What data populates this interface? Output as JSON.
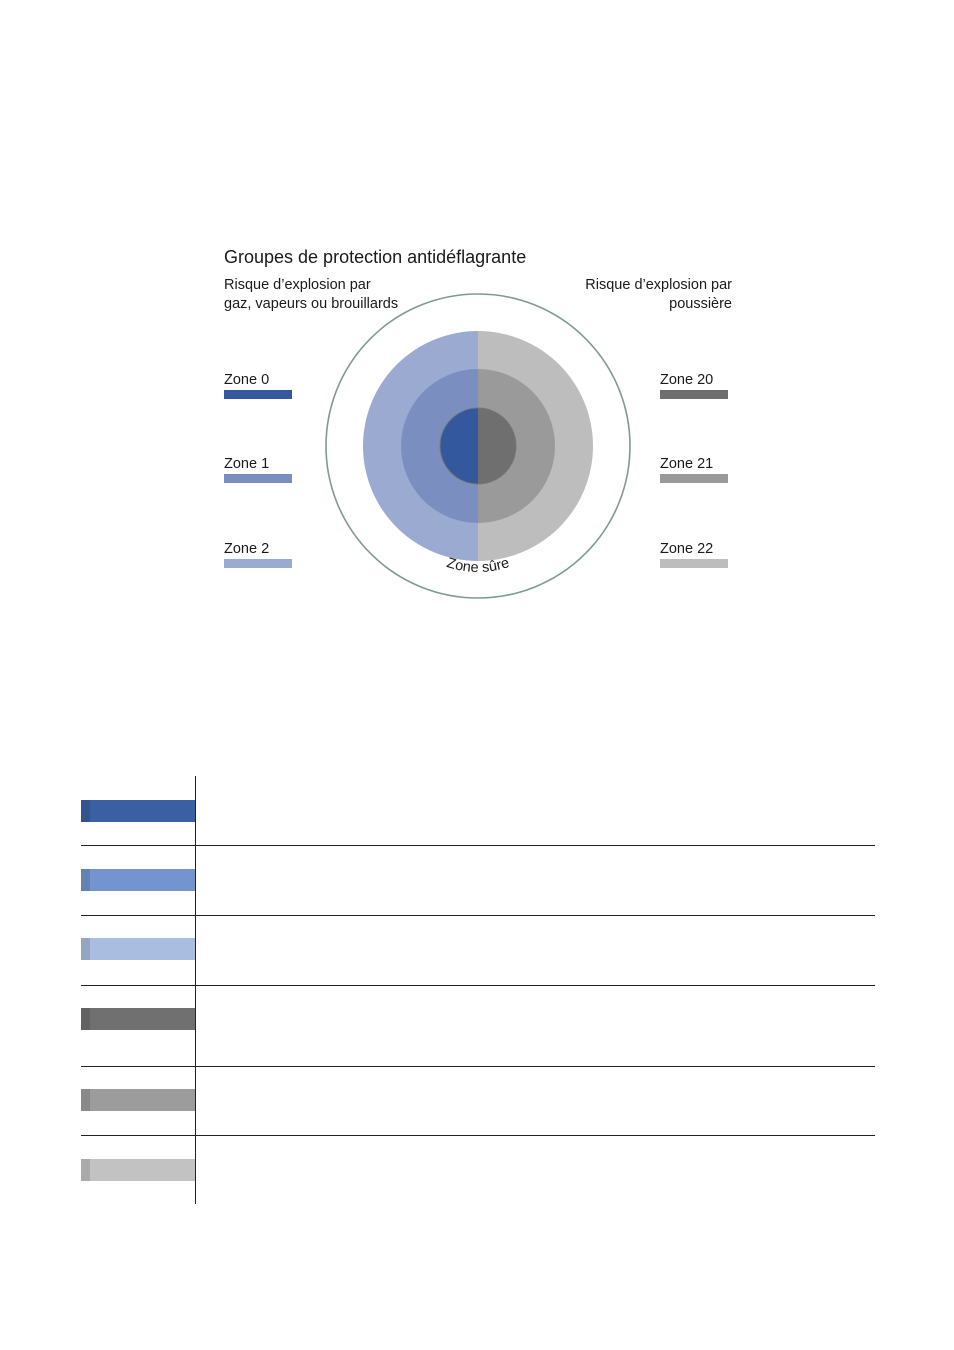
{
  "diagram": {
    "title": "Groupes de protection antidéflagrante",
    "left_caption": "Risque d’explosion par gaz, vapeurs ou brouillards",
    "right_caption": "Risque d’explosion par poussière",
    "center_label": "Zone sûre",
    "gas_zones": [
      {
        "label": "Zone 0",
        "color": "#34589e"
      },
      {
        "label": "Zone 1",
        "color": "#7b8ec0"
      },
      {
        "label": "Zone 2",
        "color": "#9aaad0"
      }
    ],
    "dust_zones": [
      {
        "label": "Zone 20",
        "color": "#6f6f6f"
      },
      {
        "label": "Zone 21",
        "color": "#9a9a9a"
      },
      {
        "label": "Zone 22",
        "color": "#bdbdbd"
      }
    ],
    "outer_ring_color": "#7f9a92"
  },
  "table_swatches": [
    "#3b5fa3",
    "#7394cf",
    "#a9bde1",
    "#707070",
    "#9c9c9c",
    "#c2c2c2"
  ]
}
